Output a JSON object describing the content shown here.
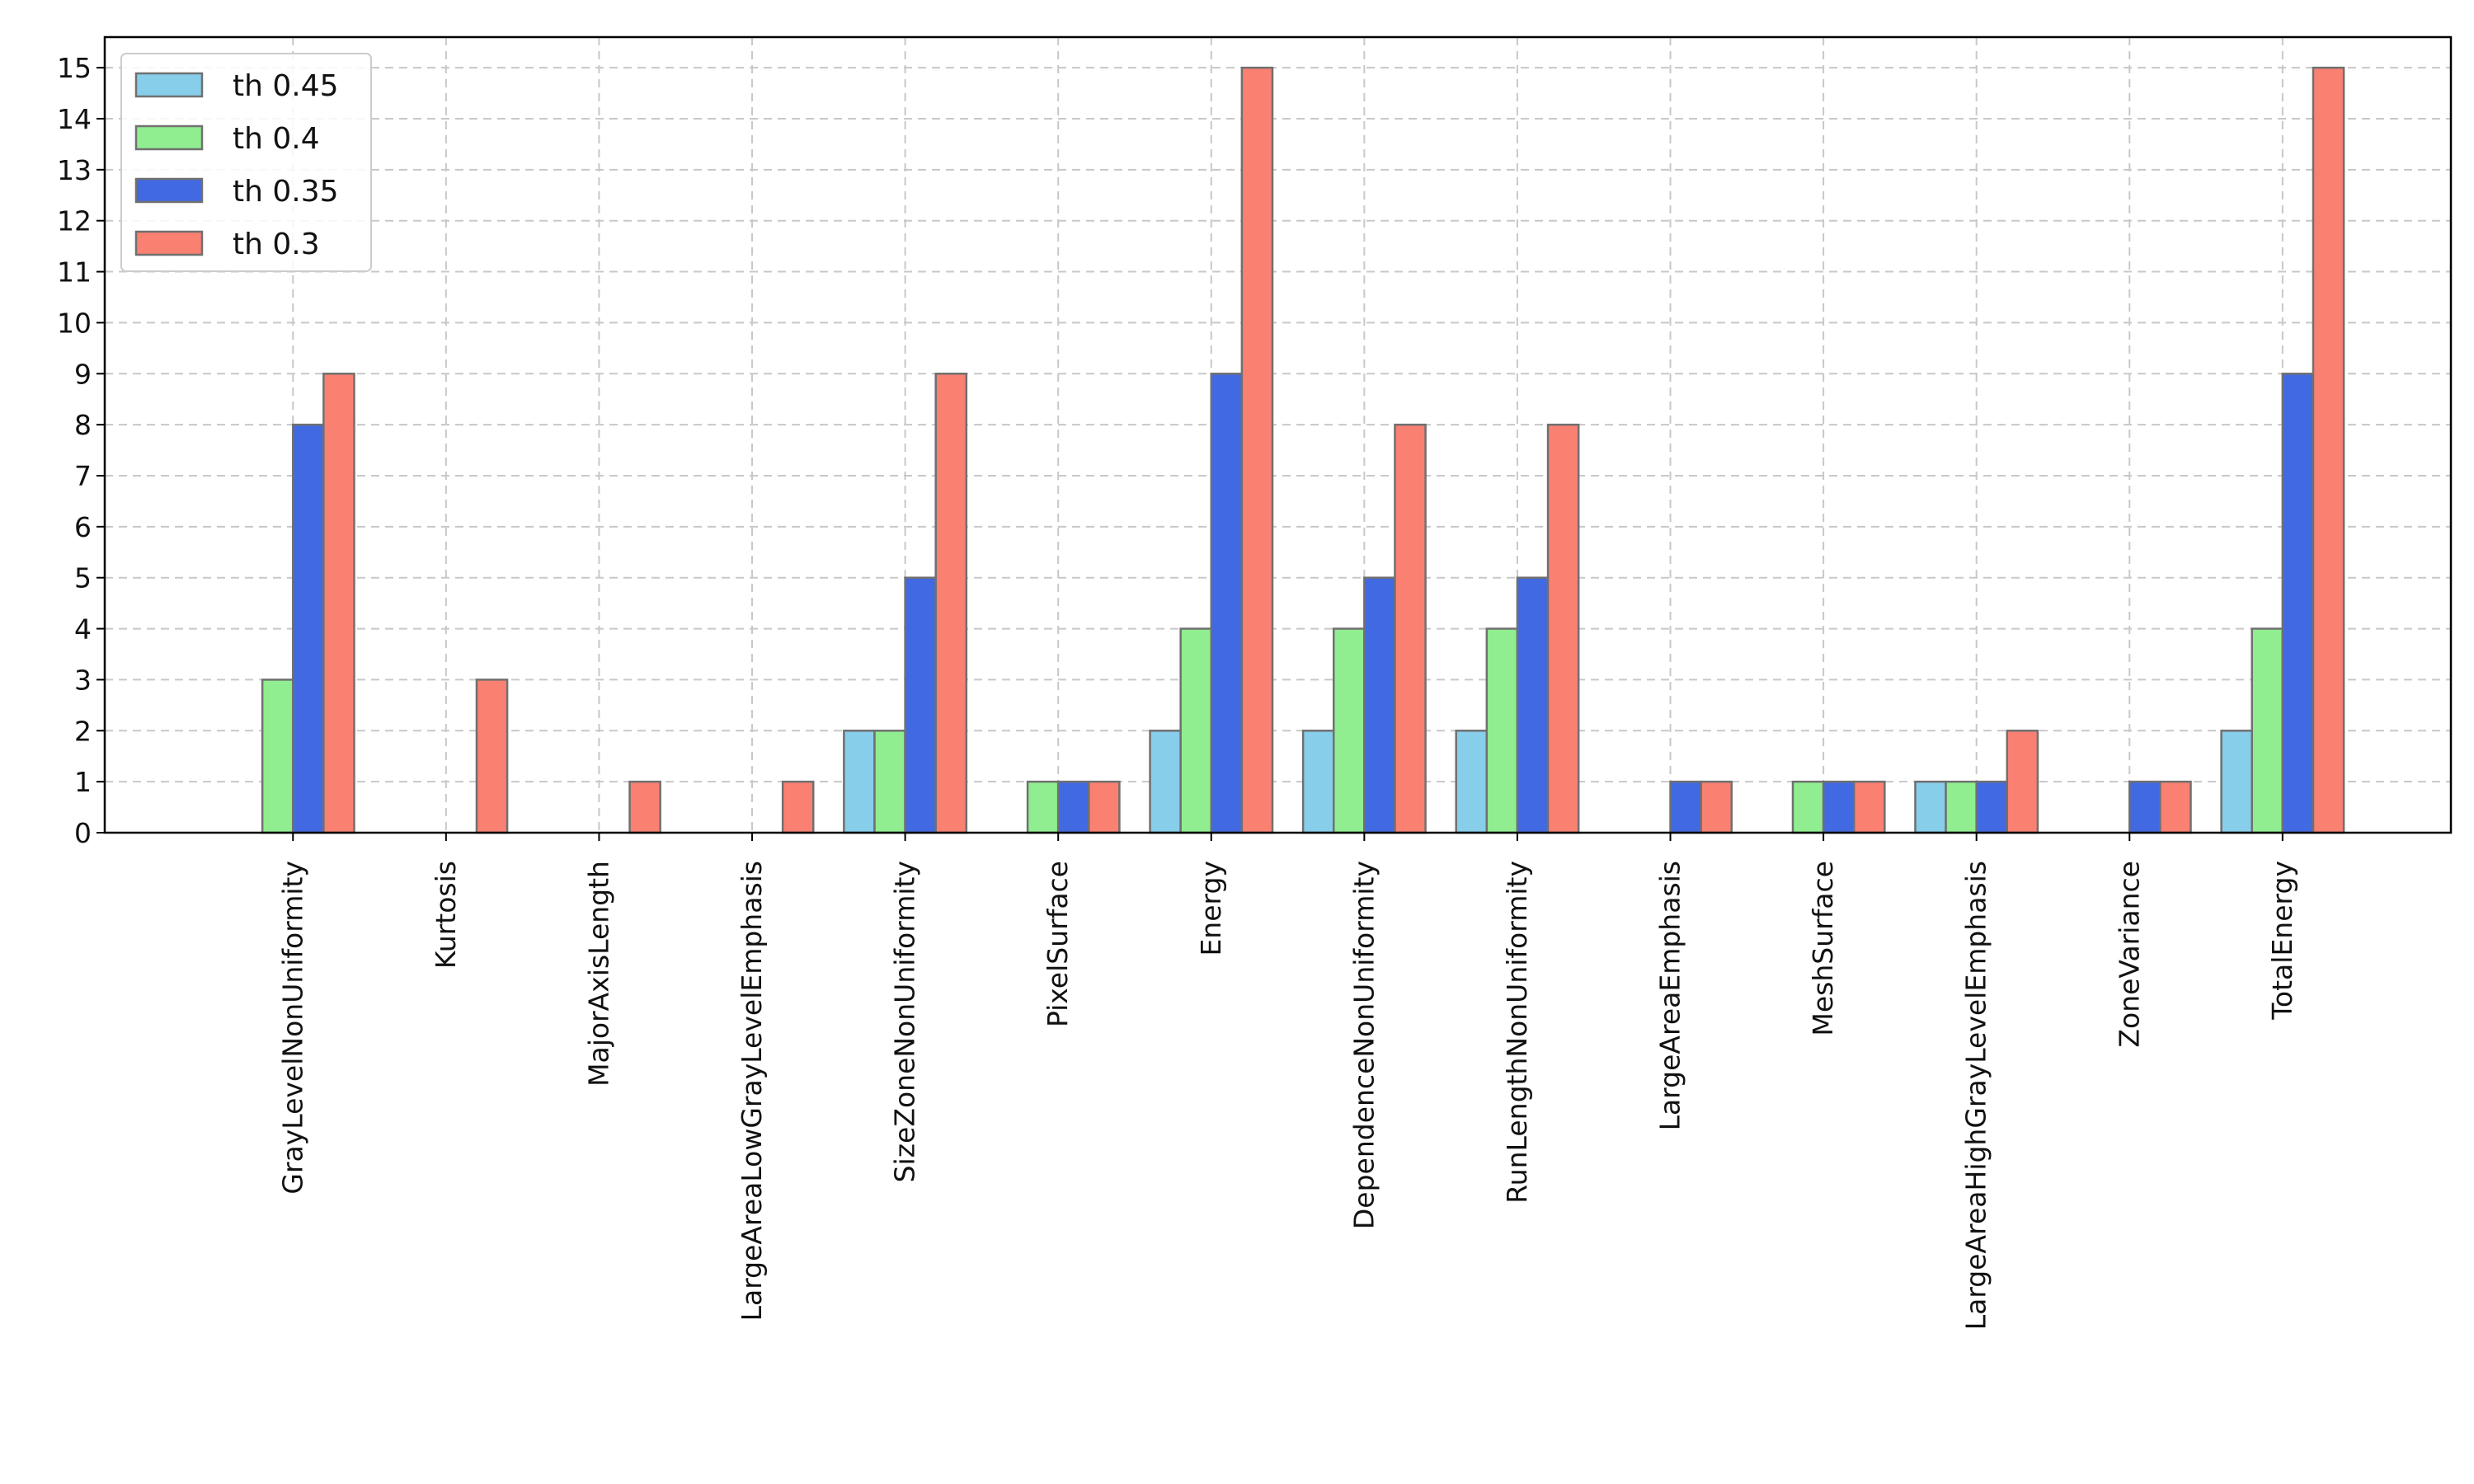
{
  "chart_data": {
    "type": "bar",
    "title": "",
    "xlabel": "",
    "ylabel": "",
    "ylim": [
      0,
      15.6
    ],
    "yticks": [
      0,
      1,
      2,
      3,
      4,
      5,
      6,
      7,
      8,
      9,
      10,
      11,
      12,
      13,
      14,
      15
    ],
    "grid": true,
    "legend_position": "top-left",
    "categories": [
      "GrayLevelNonUniformity",
      "Kurtosis",
      "MajorAxisLength",
      "LargeAreaLowGrayLevelEmphasis",
      "SizeZoneNonUniformity",
      "PixelSurface",
      "Energy",
      "DependenceNonUniformity",
      "RunLengthNonUniformity",
      "LargeAreaEmphasis",
      "MeshSurface",
      "LargeAreaHighGrayLevelEmphasis",
      "ZoneVariance",
      "TotalEnergy"
    ],
    "series": [
      {
        "name": "th 0.45",
        "color": "#87ceeb",
        "values": [
          0,
          0,
          0,
          0,
          2,
          0,
          2,
          2,
          2,
          0,
          0,
          1,
          0,
          2
        ]
      },
      {
        "name": "th 0.4",
        "color": "#90ee90",
        "values": [
          3,
          0,
          0,
          0,
          2,
          1,
          4,
          4,
          4,
          0,
          1,
          1,
          0,
          4
        ]
      },
      {
        "name": "th 0.35",
        "color": "#4169e1",
        "values": [
          8,
          0,
          0,
          0,
          5,
          1,
          9,
          5,
          5,
          1,
          1,
          1,
          1,
          9
        ]
      },
      {
        "name": "th 0.3",
        "color": "#fa8072",
        "values": [
          9,
          3,
          1,
          1,
          9,
          1,
          15,
          8,
          8,
          1,
          1,
          2,
          1,
          15
        ]
      }
    ]
  }
}
